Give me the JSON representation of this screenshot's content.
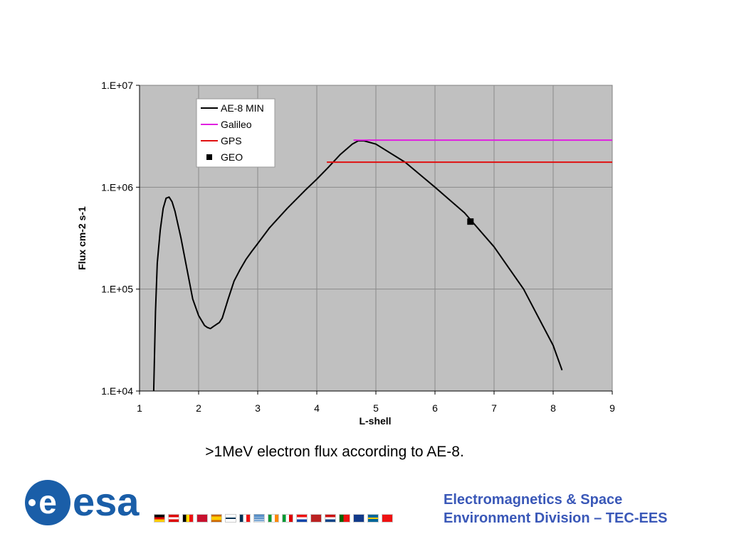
{
  "chart_data": {
    "type": "line",
    "xlabel": "L-shell",
    "ylabel": "Flux cm-2 s-1",
    "xlim": [
      1,
      9
    ],
    "ylim": [
      10000,
      10000000
    ],
    "yscale": "log",
    "grid": true,
    "legend_position": "top-left",
    "x_ticks": [
      1,
      2,
      3,
      4,
      5,
      6,
      7,
      8,
      9
    ],
    "y_ticks": [
      10000,
      100000,
      1000000,
      10000000
    ],
    "y_tick_labels": [
      "1.E+04",
      "1.E+05",
      "1.E+06",
      "1.E+07"
    ],
    "series": [
      {
        "name": "AE-8 MIN",
        "color": "#000000",
        "style": "line",
        "x": [
          1.24,
          1.27,
          1.3,
          1.35,
          1.4,
          1.45,
          1.5,
          1.55,
          1.6,
          1.7,
          1.8,
          1.9,
          2.0,
          2.1,
          2.15,
          2.2,
          2.25,
          2.3,
          2.35,
          2.4,
          2.5,
          2.6,
          2.7,
          2.8,
          2.9,
          3.0,
          3.2,
          3.5,
          3.8,
          4.0,
          4.2,
          4.4,
          4.6,
          4.7,
          4.8,
          5.0,
          5.5,
          6.0,
          6.5,
          7.0,
          7.5,
          8.0,
          8.15
        ],
        "y": [
          10000,
          60000,
          180000,
          380000,
          620000,
          780000,
          800000,
          720000,
          580000,
          320000,
          160000,
          80000,
          55000,
          44000,
          42000,
          41000,
          43000,
          45000,
          47000,
          52000,
          80000,
          120000,
          155000,
          195000,
          235000,
          280000,
          400000,
          620000,
          930000,
          1200000,
          1580000,
          2100000,
          2650000,
          2850000,
          2850000,
          2650000,
          1750000,
          1000000,
          560000,
          260000,
          100000,
          28000,
          16000
        ]
      },
      {
        "name": "Galileo",
        "color": "#e020e0",
        "style": "line",
        "x": [
          4.62,
          9.0
        ],
        "y": [
          2900000,
          2900000
        ]
      },
      {
        "name": "GPS",
        "color": "#e01010",
        "style": "line",
        "x": [
          4.17,
          9.0
        ],
        "y": [
          1760000,
          1760000
        ]
      },
      {
        "name": "GEO",
        "color": "#000000",
        "style": "marker",
        "x": [
          6.6
        ],
        "y": [
          460000
        ]
      }
    ]
  },
  "caption": ">1MeV electron flux according to AE-8.",
  "logo": {
    "text": "esa"
  },
  "division": {
    "line1": "Electromagnetics & Space",
    "line2": "Environment Division – TEC-EES"
  },
  "colors": {
    "plot_area": "#c0c0c0",
    "brand_blue": "#3a58b8",
    "logo_blue": "#1a5ea8"
  }
}
